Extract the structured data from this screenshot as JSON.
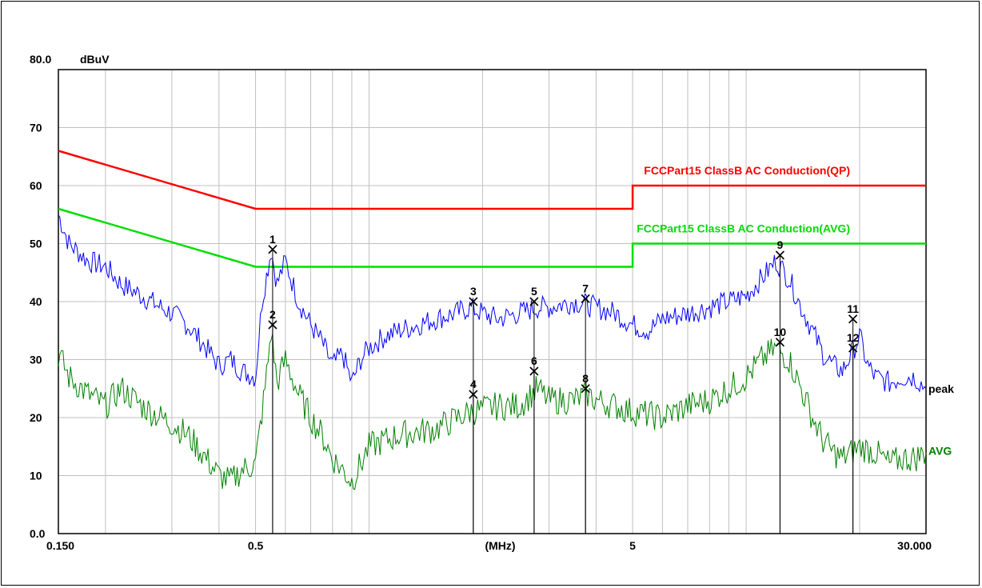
{
  "chart_data": {
    "type": "line",
    "ylabel": "dBuV",
    "xlabel": "(MHz)",
    "x_scale": "log",
    "xlim": [
      0.15,
      30
    ],
    "ylim": [
      0,
      80
    ],
    "grid": true,
    "y_ticks": [
      {
        "value": 80,
        "label": "80.0"
      },
      {
        "value": 70,
        "label": "70"
      },
      {
        "value": 60,
        "label": "60"
      },
      {
        "value": 50,
        "label": "50"
      },
      {
        "value": 40,
        "label": "40"
      },
      {
        "value": 30,
        "label": "30"
      },
      {
        "value": 20,
        "label": "20"
      },
      {
        "value": 10,
        "label": "10"
      },
      {
        "value": 0,
        "label": "0.0"
      }
    ],
    "x_ticks": [
      {
        "value": 0.15,
        "label": "0.150"
      },
      {
        "value": 0.5,
        "label": "0.5"
      },
      {
        "value": 5,
        "label": "5"
      },
      {
        "value": 30,
        "label": "30.000"
      }
    ],
    "limit_lines": [
      {
        "name": "FCCPart15 ClassB AC Conduction(QP)",
        "color": "#ff0000",
        "points": [
          [
            0.15,
            66
          ],
          [
            0.5,
            56
          ],
          [
            5,
            56
          ],
          [
            5,
            60
          ],
          [
            30,
            60
          ]
        ]
      },
      {
        "name": "FCCPart15 ClassB AC Conduction(AVG)",
        "color": "#00dd00",
        "points": [
          [
            0.15,
            56
          ],
          [
            0.5,
            46
          ],
          [
            5,
            46
          ],
          [
            5,
            50
          ],
          [
            30,
            50
          ]
        ]
      }
    ],
    "series": [
      {
        "name": "peak",
        "color": "#0000ff",
        "points": [
          [
            0.15,
            55
          ],
          [
            0.16,
            50
          ],
          [
            0.18,
            47
          ],
          [
            0.2,
            46
          ],
          [
            0.22,
            43
          ],
          [
            0.25,
            41
          ],
          [
            0.28,
            39
          ],
          [
            0.3,
            38
          ],
          [
            0.33,
            36
          ],
          [
            0.36,
            33
          ],
          [
            0.4,
            29
          ],
          [
            0.43,
            30
          ],
          [
            0.46,
            28
          ],
          [
            0.5,
            27
          ],
          [
            0.52,
            40
          ],
          [
            0.55,
            49
          ],
          [
            0.57,
            43
          ],
          [
            0.6,
            47
          ],
          [
            0.65,
            40
          ],
          [
            0.7,
            36
          ],
          [
            0.75,
            33
          ],
          [
            0.8,
            29
          ],
          [
            0.85,
            31
          ],
          [
            0.9,
            26
          ],
          [
            0.95,
            30
          ],
          [
            1.0,
            32
          ],
          [
            1.1,
            34
          ],
          [
            1.2,
            35
          ],
          [
            1.35,
            36
          ],
          [
            1.5,
            37
          ],
          [
            1.7,
            38
          ],
          [
            1.85,
            39
          ],
          [
            2.0,
            38
          ],
          [
            2.2,
            37
          ],
          [
            2.5,
            38
          ],
          [
            2.8,
            39
          ],
          [
            3.0,
            39
          ],
          [
            3.5,
            40
          ],
          [
            4.0,
            39
          ],
          [
            4.5,
            38
          ],
          [
            5.0,
            36
          ],
          [
            5.5,
            35
          ],
          [
            6.0,
            37
          ],
          [
            7.0,
            38
          ],
          [
            8.0,
            39
          ],
          [
            9.0,
            40
          ],
          [
            10.0,
            41
          ],
          [
            11.0,
            44
          ],
          [
            12.0,
            47
          ],
          [
            13.0,
            44
          ],
          [
            14.0,
            39
          ],
          [
            15.0,
            35
          ],
          [
            16.0,
            31
          ],
          [
            17.0,
            29
          ],
          [
            18.0,
            28
          ],
          [
            19.0,
            31
          ],
          [
            20.0,
            34
          ],
          [
            21.0,
            29
          ],
          [
            22.0,
            27
          ],
          [
            24.0,
            26
          ],
          [
            26.0,
            27
          ],
          [
            28.0,
            27
          ],
          [
            30.0,
            25
          ]
        ]
      },
      {
        "name": "AVG",
        "color": "#008000",
        "points": [
          [
            0.15,
            31
          ],
          [
            0.16,
            27
          ],
          [
            0.18,
            24
          ],
          [
            0.2,
            22
          ],
          [
            0.22,
            25
          ],
          [
            0.25,
            22
          ],
          [
            0.28,
            20
          ],
          [
            0.3,
            19
          ],
          [
            0.33,
            17
          ],
          [
            0.36,
            14
          ],
          [
            0.4,
            10
          ],
          [
            0.43,
            9
          ],
          [
            0.46,
            11
          ],
          [
            0.5,
            12
          ],
          [
            0.53,
            25
          ],
          [
            0.55,
            35
          ],
          [
            0.57,
            26
          ],
          [
            0.6,
            30
          ],
          [
            0.65,
            24
          ],
          [
            0.7,
            20
          ],
          [
            0.75,
            17
          ],
          [
            0.8,
            13
          ],
          [
            0.85,
            11
          ],
          [
            0.9,
            9
          ],
          [
            0.95,
            12
          ],
          [
            1.0,
            15
          ],
          [
            1.2,
            17
          ],
          [
            1.5,
            18
          ],
          [
            1.85,
            21
          ],
          [
            2.2,
            22
          ],
          [
            2.5,
            22
          ],
          [
            2.8,
            25
          ],
          [
            3.0,
            23
          ],
          [
            3.5,
            23
          ],
          [
            3.8,
            24
          ],
          [
            4.0,
            23
          ],
          [
            4.5,
            22
          ],
          [
            5.0,
            21
          ],
          [
            6.0,
            20
          ],
          [
            7.0,
            22
          ],
          [
            8.0,
            23
          ],
          [
            9.0,
            25
          ],
          [
            10.0,
            27
          ],
          [
            11.0,
            30
          ],
          [
            12.0,
            32
          ],
          [
            13.0,
            30
          ],
          [
            14.0,
            25
          ],
          [
            15.0,
            20
          ],
          [
            16.0,
            16
          ],
          [
            17.0,
            14
          ],
          [
            18.0,
            13
          ],
          [
            19.0,
            14
          ],
          [
            20.0,
            15
          ],
          [
            22.0,
            14
          ],
          [
            24.0,
            12
          ],
          [
            26.0,
            13
          ],
          [
            28.0,
            13
          ],
          [
            30.0,
            14
          ]
        ]
      }
    ],
    "markers": [
      {
        "label": "1",
        "x": 0.555,
        "y": 49
      },
      {
        "label": "2",
        "x": 0.555,
        "y": 36
      },
      {
        "label": "3",
        "x": 1.89,
        "y": 40
      },
      {
        "label": "4",
        "x": 1.89,
        "y": 24
      },
      {
        "label": "5",
        "x": 2.74,
        "y": 40
      },
      {
        "label": "6",
        "x": 2.74,
        "y": 28
      },
      {
        "label": "7",
        "x": 3.75,
        "y": 40.5
      },
      {
        "label": "8",
        "x": 3.75,
        "y": 25
      },
      {
        "label": "9",
        "x": 12.3,
        "y": 48
      },
      {
        "label": "10",
        "x": 12.3,
        "y": 33
      },
      {
        "label": "11",
        "x": 19.2,
        "y": 37
      },
      {
        "label": "12",
        "x": 19.2,
        "y": 32
      }
    ]
  }
}
